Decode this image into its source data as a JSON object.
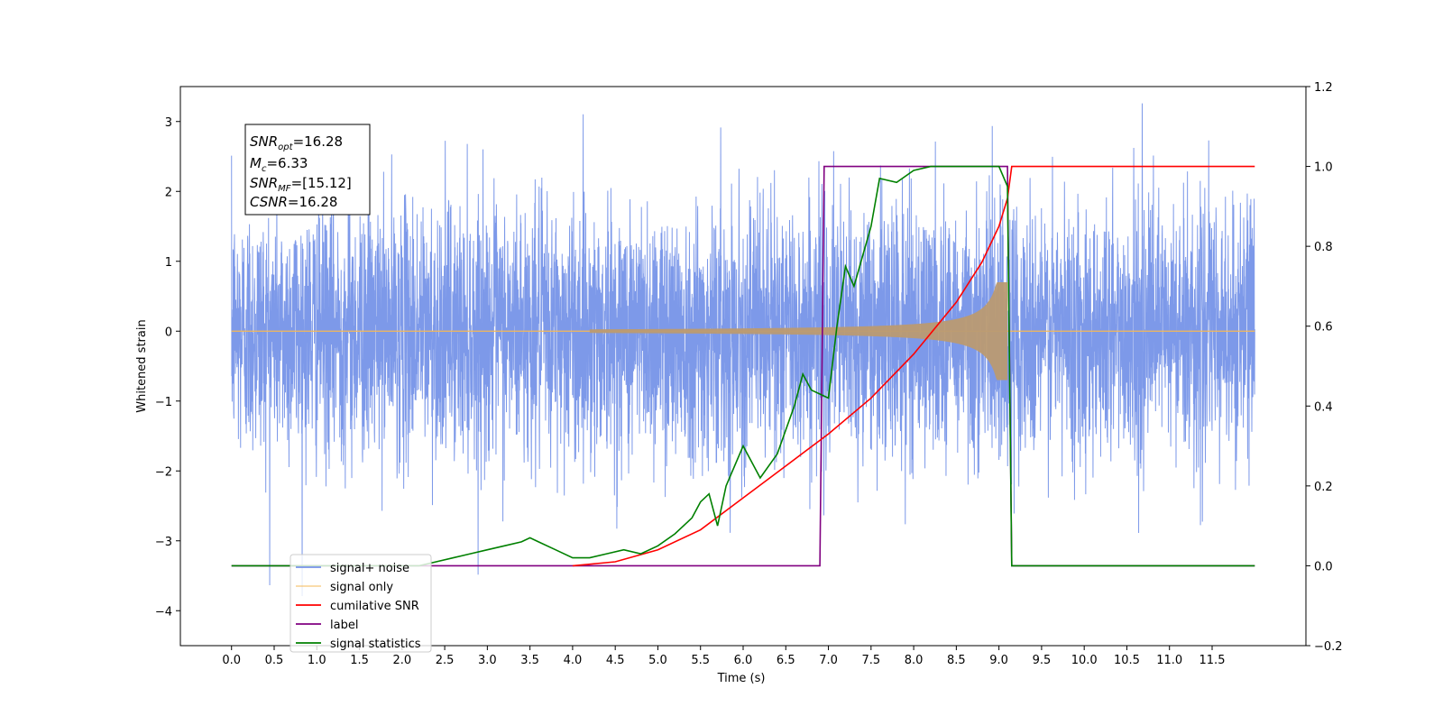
{
  "chart_data": {
    "type": "line",
    "title": "",
    "xlabel": "Time (s)",
    "ylabel": "Whitened strain",
    "y2label": "",
    "xlim": [
      -0.6,
      12.6
    ],
    "ylim": [
      -4.5,
      3.5
    ],
    "y2lim": [
      -0.2,
      1.2
    ],
    "x_ticks": [
      "0.0",
      "0.5",
      "1.0",
      "1.5",
      "2.0",
      "2.5",
      "3.0",
      "3.5",
      "4.0",
      "4.5",
      "5.0",
      "5.5",
      "6.0",
      "6.5",
      "7.0",
      "7.5",
      "8.0",
      "8.5",
      "9.0",
      "9.5",
      "10.0",
      "10.5",
      "11.0",
      "11.5"
    ],
    "y_ticks": [
      "3",
      "2",
      "1",
      "0",
      "−1",
      "−2",
      "−3",
      "−4"
    ],
    "y2_ticks": [
      "1.2",
      "1.0",
      "0.8",
      "0.6",
      "0.4",
      "0.2",
      "0.0",
      "−0.2"
    ],
    "grid": false,
    "legend_position": "lower-left",
    "annotation": {
      "snr_opt": "=16.28",
      "mc": "=6.33",
      "snr_mf": "=[15.12]",
      "csnr": "=16.28"
    },
    "series": [
      {
        "name": "signal+ noise",
        "axis": "left",
        "color": "#7693e8",
        "x_range": [
          0.0,
          12.0
        ],
        "noise_std": 0.9
      },
      {
        "name": "signal only",
        "axis": "left",
        "color": "#f5b955",
        "merger_time": 9.1,
        "peak_amplitude": 0.7
      },
      {
        "name": "cumilative SNR",
        "axis": "right",
        "color": "#ff0000",
        "x": [
          4.0,
          4.5,
          5.0,
          5.5,
          6.0,
          6.5,
          7.0,
          7.5,
          8.0,
          8.5,
          8.8,
          9.0,
          9.1,
          9.15,
          12.0
        ],
        "values": [
          0.0,
          0.01,
          0.04,
          0.09,
          0.17,
          0.25,
          0.33,
          0.42,
          0.53,
          0.66,
          0.76,
          0.85,
          0.92,
          1.0,
          1.0
        ]
      },
      {
        "name": "label",
        "axis": "right",
        "color": "#800080",
        "x": [
          0.0,
          6.9,
          6.95,
          9.1,
          9.15,
          12.0
        ],
        "values": [
          0.0,
          0.0,
          1.0,
          1.0,
          0.0,
          0.0
        ]
      },
      {
        "name": "signal statistics",
        "axis": "right",
        "color": "#008000",
        "x": [
          0.0,
          2.2,
          2.4,
          2.6,
          2.8,
          3.0,
          3.2,
          3.4,
          3.5,
          3.6,
          3.8,
          4.0,
          4.2,
          4.4,
          4.6,
          4.8,
          5.0,
          5.2,
          5.4,
          5.5,
          5.6,
          5.7,
          5.8,
          6.0,
          6.2,
          6.4,
          6.6,
          6.7,
          6.8,
          6.9,
          7.0,
          7.1,
          7.2,
          7.3,
          7.5,
          7.6,
          7.8,
          8.0,
          8.2,
          8.4,
          8.6,
          8.8,
          9.0,
          9.1,
          9.15,
          12.0
        ],
        "values": [
          0.0,
          0.0,
          0.01,
          0.02,
          0.03,
          0.04,
          0.05,
          0.06,
          0.07,
          0.06,
          0.04,
          0.02,
          0.02,
          0.03,
          0.04,
          0.03,
          0.05,
          0.08,
          0.12,
          0.16,
          0.18,
          0.1,
          0.2,
          0.3,
          0.22,
          0.28,
          0.4,
          0.48,
          0.44,
          0.43,
          0.42,
          0.6,
          0.75,
          0.7,
          0.85,
          0.97,
          0.96,
          0.99,
          1.0,
          1.0,
          1.0,
          1.0,
          1.0,
          0.95,
          0.0,
          0.0
        ]
      }
    ]
  }
}
